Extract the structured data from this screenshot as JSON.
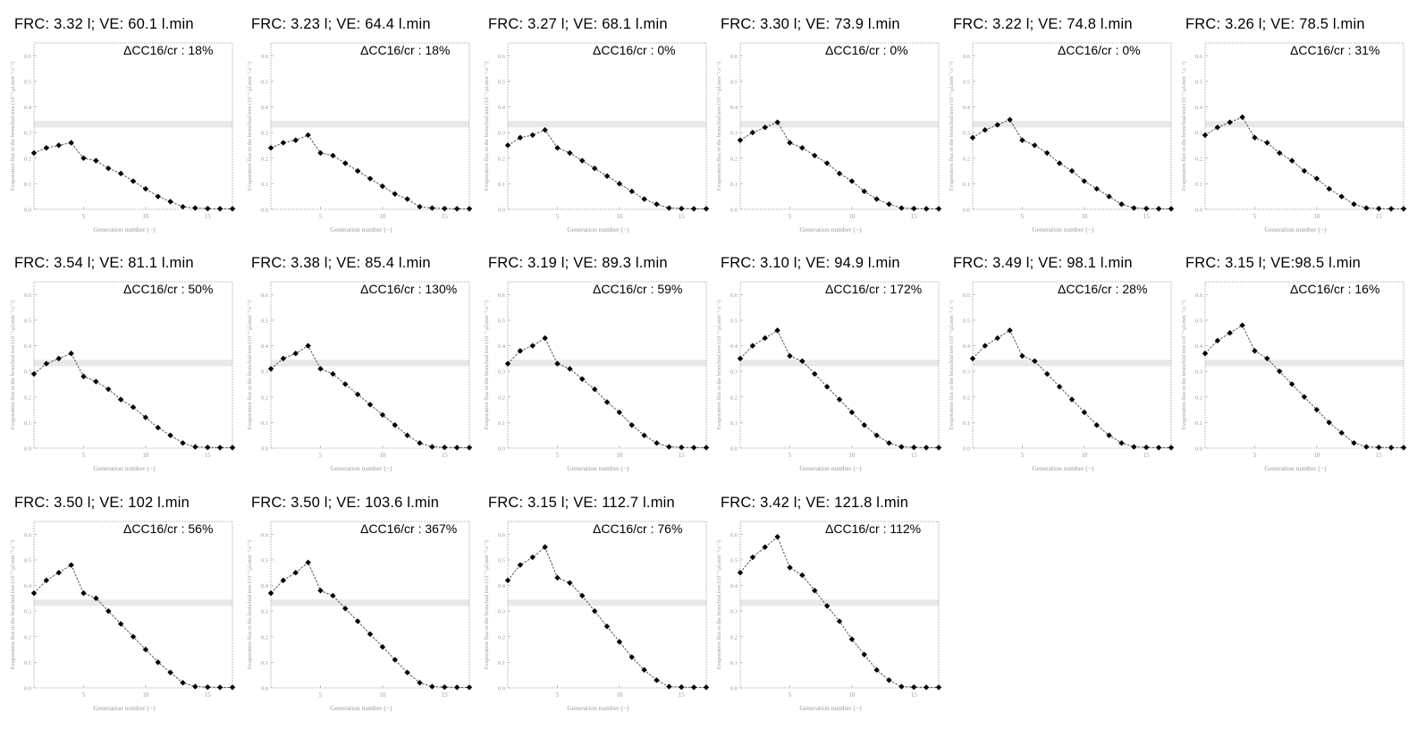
{
  "common": {
    "xlabel": "Generation number (−)",
    "ylabel": "Evaporation flux in the bronchial tree (10⁻³ μl.mm⁻².s⁻¹)",
    "x_ticks": [
      "5",
      "10",
      "15"
    ],
    "y_ticks": [
      "0.0",
      "0.1",
      "0.2",
      "0.3",
      "0.4",
      "0.5",
      "0.6"
    ],
    "xlim": [
      1,
      17
    ],
    "ylim": [
      0,
      0.65
    ],
    "reference_band": [
      0.32,
      0.345
    ],
    "colors": {
      "markers": "#000000",
      "band": "#e8e8e8",
      "axis": "#b0b0b0"
    }
  },
  "chart_data": [
    {
      "type": "line",
      "title": "FRC: 3.32 l; VE: 60.1 l.min",
      "annotation": "ΔCC16/cr : 18%",
      "x": [
        1,
        2,
        3,
        4,
        5,
        6,
        7,
        8,
        9,
        10,
        11,
        12,
        13,
        14,
        15,
        16,
        17
      ],
      "y": [
        0.22,
        0.24,
        0.25,
        0.26,
        0.2,
        0.19,
        0.16,
        0.14,
        0.11,
        0.08,
        0.05,
        0.03,
        0.01,
        0.005,
        0.003,
        0.002,
        0.002
      ]
    },
    {
      "type": "line",
      "title": "FRC: 3.23 l; VE: 64.4 l.min",
      "annotation": "ΔCC16/cr : 18%",
      "x": [
        1,
        2,
        3,
        4,
        5,
        6,
        7,
        8,
        9,
        10,
        11,
        12,
        13,
        14,
        15,
        16,
        17
      ],
      "y": [
        0.24,
        0.26,
        0.27,
        0.29,
        0.22,
        0.21,
        0.18,
        0.15,
        0.12,
        0.09,
        0.06,
        0.04,
        0.01,
        0.005,
        0.003,
        0.002,
        0.002
      ]
    },
    {
      "type": "line",
      "title": "FRC: 3.27 l; VE: 68.1 l.min",
      "annotation": "ΔCC16/cr : 0%",
      "x": [
        1,
        2,
        3,
        4,
        5,
        6,
        7,
        8,
        9,
        10,
        11,
        12,
        13,
        14,
        15,
        16,
        17
      ],
      "y": [
        0.25,
        0.28,
        0.29,
        0.31,
        0.24,
        0.22,
        0.19,
        0.16,
        0.13,
        0.1,
        0.07,
        0.04,
        0.02,
        0.005,
        0.003,
        0.002,
        0.002
      ]
    },
    {
      "type": "line",
      "title": "FRC: 3.30 l; VE: 73.9 l.min",
      "annotation": "ΔCC16/cr : 0%",
      "x": [
        1,
        2,
        3,
        4,
        5,
        6,
        7,
        8,
        9,
        10,
        11,
        12,
        13,
        14,
        15,
        16,
        17
      ],
      "y": [
        0.27,
        0.3,
        0.32,
        0.34,
        0.26,
        0.24,
        0.21,
        0.18,
        0.14,
        0.11,
        0.07,
        0.04,
        0.02,
        0.005,
        0.003,
        0.002,
        0.002
      ]
    },
    {
      "type": "line",
      "title": "FRC: 3.22 l; VE: 74.8 l.min",
      "annotation": "ΔCC16/cr : 0%",
      "x": [
        1,
        2,
        3,
        4,
        5,
        6,
        7,
        8,
        9,
        10,
        11,
        12,
        13,
        14,
        15,
        16,
        17
      ],
      "y": [
        0.28,
        0.31,
        0.33,
        0.35,
        0.27,
        0.25,
        0.22,
        0.18,
        0.15,
        0.11,
        0.08,
        0.05,
        0.02,
        0.005,
        0.003,
        0.002,
        0.002
      ]
    },
    {
      "type": "line",
      "title": "FRC: 3.26 l; VE: 78.5 l.min",
      "annotation": "ΔCC16/cr : 31%",
      "x": [
        1,
        2,
        3,
        4,
        5,
        6,
        7,
        8,
        9,
        10,
        11,
        12,
        13,
        14,
        15,
        16,
        17
      ],
      "y": [
        0.29,
        0.32,
        0.34,
        0.36,
        0.28,
        0.26,
        0.22,
        0.19,
        0.15,
        0.12,
        0.08,
        0.05,
        0.02,
        0.005,
        0.003,
        0.002,
        0.002
      ]
    },
    {
      "type": "line",
      "title": "FRC: 3.54 l; VE: 81.1 l.min",
      "annotation": "ΔCC16/cr : 50%",
      "x": [
        1,
        2,
        3,
        4,
        5,
        6,
        7,
        8,
        9,
        10,
        11,
        12,
        13,
        14,
        15,
        16,
        17
      ],
      "y": [
        0.29,
        0.33,
        0.35,
        0.37,
        0.28,
        0.26,
        0.23,
        0.19,
        0.16,
        0.12,
        0.08,
        0.05,
        0.02,
        0.005,
        0.003,
        0.002,
        0.002
      ]
    },
    {
      "type": "line",
      "title": "FRC: 3.38 l; VE: 85.4 l.min",
      "annotation": "ΔCC16/cr : 130%",
      "x": [
        1,
        2,
        3,
        4,
        5,
        6,
        7,
        8,
        9,
        10,
        11,
        12,
        13,
        14,
        15,
        16,
        17
      ],
      "y": [
        0.31,
        0.35,
        0.37,
        0.4,
        0.31,
        0.29,
        0.25,
        0.21,
        0.17,
        0.13,
        0.09,
        0.05,
        0.02,
        0.005,
        0.003,
        0.002,
        0.002
      ]
    },
    {
      "type": "line",
      "title": "FRC: 3.19 l; VE: 89.3 l.min",
      "annotation": "ΔCC16/cr : 59%",
      "x": [
        1,
        2,
        3,
        4,
        5,
        6,
        7,
        8,
        9,
        10,
        11,
        12,
        13,
        14,
        15,
        16,
        17
      ],
      "y": [
        0.33,
        0.38,
        0.4,
        0.43,
        0.33,
        0.31,
        0.27,
        0.23,
        0.18,
        0.14,
        0.09,
        0.05,
        0.02,
        0.005,
        0.003,
        0.002,
        0.002
      ]
    },
    {
      "type": "line",
      "title": "FRC: 3.10 l; VE: 94.9 l.min",
      "annotation": "ΔCC16/cr : 172%",
      "x": [
        1,
        2,
        3,
        4,
        5,
        6,
        7,
        8,
        9,
        10,
        11,
        12,
        13,
        14,
        15,
        16,
        17
      ],
      "y": [
        0.35,
        0.4,
        0.43,
        0.46,
        0.36,
        0.34,
        0.29,
        0.24,
        0.19,
        0.14,
        0.09,
        0.05,
        0.02,
        0.005,
        0.003,
        0.002,
        0.002
      ]
    },
    {
      "type": "line",
      "title": "FRC: 3.49 l; VE: 98.1 l.min",
      "annotation": "ΔCC16/cr : 28%",
      "x": [
        1,
        2,
        3,
        4,
        5,
        6,
        7,
        8,
        9,
        10,
        11,
        12,
        13,
        14,
        15,
        16,
        17
      ],
      "y": [
        0.35,
        0.4,
        0.43,
        0.46,
        0.36,
        0.34,
        0.29,
        0.24,
        0.19,
        0.14,
        0.09,
        0.05,
        0.02,
        0.005,
        0.003,
        0.002,
        0.002
      ]
    },
    {
      "type": "line",
      "title": "FRC: 3.15 l; VE:98.5 l.min",
      "annotation": "ΔCC16/cr : 16%",
      "x": [
        1,
        2,
        3,
        4,
        5,
        6,
        7,
        8,
        9,
        10,
        11,
        12,
        13,
        14,
        15,
        16,
        17
      ],
      "y": [
        0.37,
        0.42,
        0.45,
        0.48,
        0.38,
        0.35,
        0.3,
        0.25,
        0.2,
        0.15,
        0.1,
        0.06,
        0.02,
        0.005,
        0.003,
        0.002,
        0.002
      ]
    },
    {
      "type": "line",
      "title": "FRC: 3.50 l; VE: 102 l.min",
      "annotation": "ΔCC16/cr : 56%",
      "x": [
        1,
        2,
        3,
        4,
        5,
        6,
        7,
        8,
        9,
        10,
        11,
        12,
        13,
        14,
        15,
        16,
        17
      ],
      "y": [
        0.37,
        0.42,
        0.45,
        0.48,
        0.37,
        0.35,
        0.3,
        0.25,
        0.2,
        0.15,
        0.1,
        0.06,
        0.02,
        0.005,
        0.003,
        0.002,
        0.002
      ]
    },
    {
      "type": "line",
      "title": "FRC: 3.50 l; VE: 103.6 l.min",
      "annotation": "ΔCC16/cr : 367%",
      "x": [
        1,
        2,
        3,
        4,
        5,
        6,
        7,
        8,
        9,
        10,
        11,
        12,
        13,
        14,
        15,
        16,
        17
      ],
      "y": [
        0.37,
        0.42,
        0.45,
        0.49,
        0.38,
        0.36,
        0.31,
        0.26,
        0.21,
        0.16,
        0.11,
        0.06,
        0.02,
        0.005,
        0.003,
        0.002,
        0.002
      ]
    },
    {
      "type": "line",
      "title": "FRC: 3.15 l; VE: 112.7 l.min",
      "annotation": "ΔCC16/cr : 76%",
      "x": [
        1,
        2,
        3,
        4,
        5,
        6,
        7,
        8,
        9,
        10,
        11,
        12,
        13,
        14,
        15,
        16,
        17
      ],
      "y": [
        0.42,
        0.48,
        0.51,
        0.55,
        0.43,
        0.41,
        0.36,
        0.3,
        0.24,
        0.18,
        0.12,
        0.07,
        0.03,
        0.005,
        0.003,
        0.002,
        0.002
      ]
    },
    {
      "type": "line",
      "title": "FRC: 3.42 l; VE: 121.8 l.min",
      "annotation": "ΔCC16/cr : 112%",
      "x": [
        1,
        2,
        3,
        4,
        5,
        6,
        7,
        8,
        9,
        10,
        11,
        12,
        13,
        14,
        15,
        16,
        17
      ],
      "y": [
        0.45,
        0.51,
        0.55,
        0.59,
        0.47,
        0.44,
        0.38,
        0.32,
        0.26,
        0.19,
        0.13,
        0.07,
        0.03,
        0.005,
        0.003,
        0.002,
        0.002
      ]
    }
  ]
}
